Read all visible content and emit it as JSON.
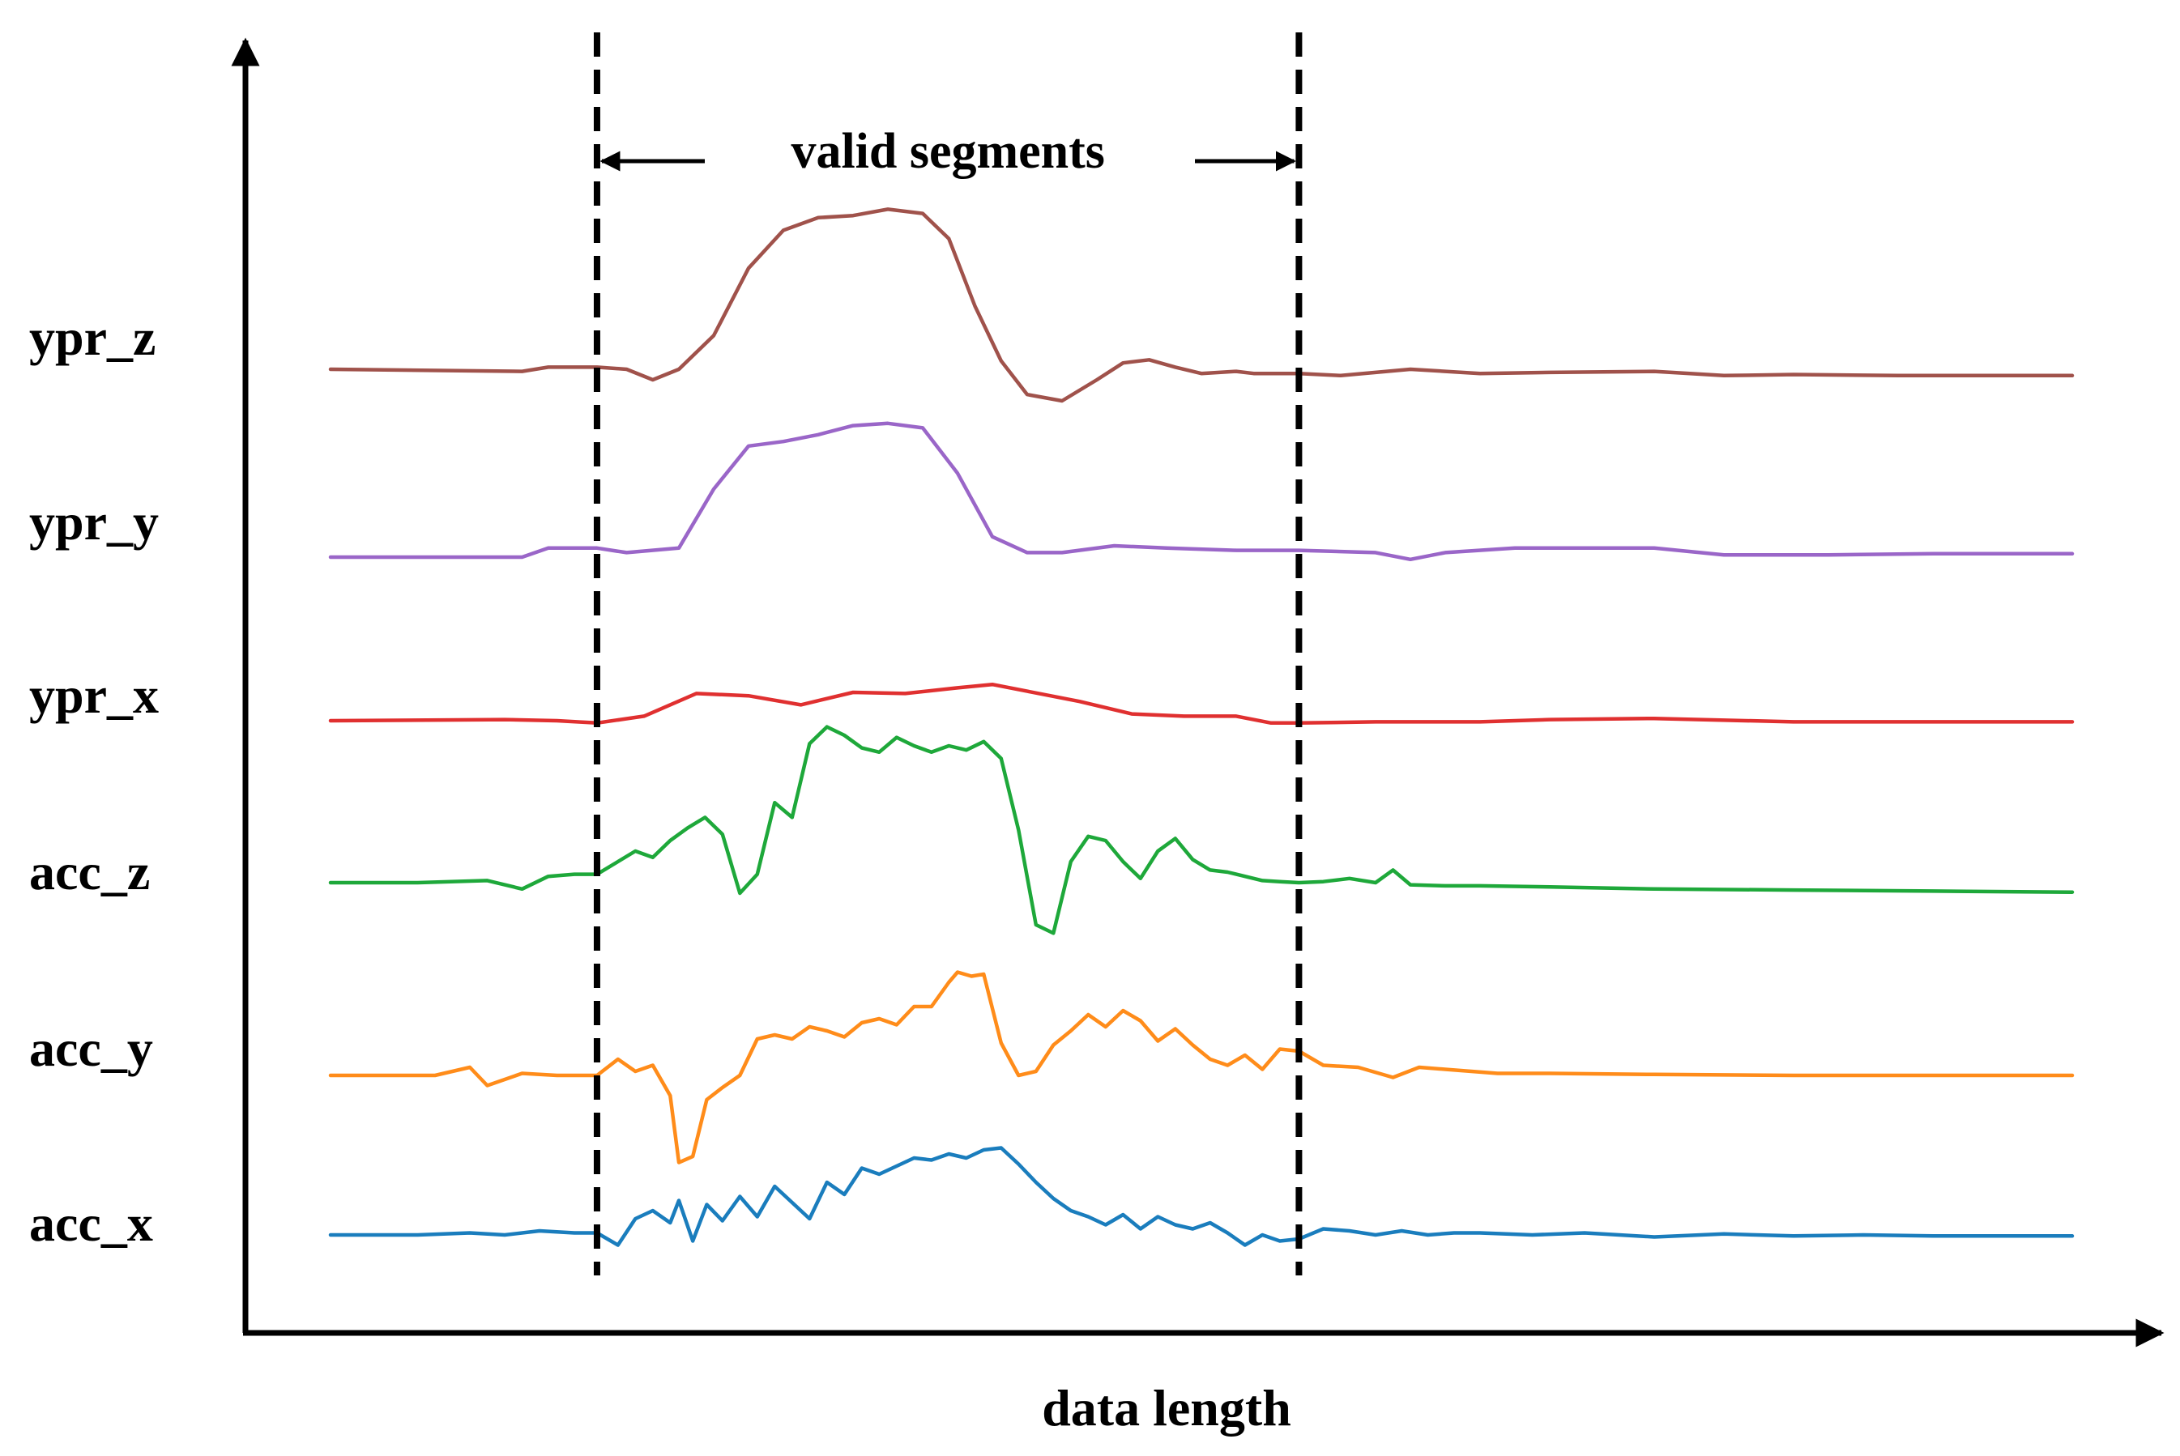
{
  "chart_data": {
    "type": "line",
    "title": "",
    "xlabel": "data length",
    "ylabel": "",
    "grid": false,
    "legend": "none",
    "xlim": [
      0,
      100
    ],
    "valid_segment": {
      "label": "valid segments",
      "start": 15.3,
      "end": 55.6
    },
    "series": [
      {
        "name": "ypr_z",
        "color": "#a0524b",
        "x": [
          0,
          11,
          12.5,
          15.3,
          17,
          18.5,
          20,
          22,
          24,
          26,
          28,
          30,
          32,
          34,
          35.5,
          37,
          38.5,
          40,
          42,
          44,
          45.5,
          47,
          48.5,
          50,
          52,
          53,
          55.6,
          58,
          62,
          66,
          70,
          76,
          80,
          84,
          90,
          100
        ],
        "values": [
          0.0,
          -0.1,
          0.1,
          0.1,
          0.0,
          -0.5,
          0.0,
          1.6,
          4.8,
          6.6,
          7.2,
          7.3,
          7.6,
          7.4,
          6.2,
          3.0,
          0.4,
          -1.2,
          -1.5,
          -0.5,
          0.3,
          0.45,
          0.1,
          -0.2,
          -0.1,
          -0.2,
          -0.2,
          -0.3,
          0.0,
          -0.2,
          -0.15,
          -0.1,
          -0.3,
          -0.25,
          -0.3,
          -0.3
        ]
      },
      {
        "name": "ypr_y",
        "color": "#9a66c8",
        "x": [
          0,
          11,
          12.5,
          15.3,
          17,
          20,
          22,
          24,
          26,
          28,
          30,
          32,
          34,
          36,
          38,
          40,
          42,
          45,
          48,
          52,
          55.6,
          60,
          62,
          64,
          68,
          72,
          76,
          80,
          86,
          92,
          100
        ],
        "values": [
          0.0,
          0.0,
          0.4,
          0.4,
          0.2,
          0.4,
          3.0,
          4.9,
          5.1,
          5.4,
          5.8,
          5.9,
          5.7,
          3.7,
          0.9,
          0.2,
          0.2,
          0.5,
          0.4,
          0.3,
          0.3,
          0.2,
          -0.1,
          0.2,
          0.4,
          0.4,
          0.4,
          0.1,
          0.1,
          0.15,
          0.15
        ]
      },
      {
        "name": "ypr_x",
        "color": "#e03030",
        "x": [
          0,
          10,
          13,
          15.3,
          18,
          21,
          24,
          27,
          30,
          33,
          36,
          38,
          40,
          43,
          46,
          49,
          52,
          54,
          55.6,
          60,
          66,
          70,
          76,
          84,
          92,
          100
        ],
        "values": [
          0.0,
          0.05,
          0.0,
          -0.1,
          0.2,
          1.2,
          1.1,
          0.7,
          1.25,
          1.2,
          1.45,
          1.6,
          1.3,
          0.85,
          0.3,
          0.2,
          0.2,
          -0.1,
          -0.1,
          -0.05,
          -0.05,
          0.05,
          0.1,
          -0.05,
          -0.05,
          -0.05
        ]
      },
      {
        "name": "acc_z",
        "color": "#1ea83a",
        "x": [
          0,
          5,
          9,
          11,
          12.5,
          14,
          15.3,
          16.5,
          17.5,
          18.5,
          19.5,
          20.5,
          21.5,
          22.5,
          23.5,
          24.5,
          25.5,
          26.5,
          27.5,
          28.5,
          29.5,
          30.5,
          31.5,
          32.5,
          33.5,
          34.5,
          35.5,
          36.5,
          37.5,
          38.5,
          39.5,
          40.5,
          41.5,
          42.5,
          43.5,
          44.5,
          45.5,
          46.5,
          47.5,
          48.5,
          49.5,
          50.5,
          51.5,
          52.5,
          53.5,
          54.5,
          55.6,
          57,
          58.5,
          60,
          61,
          62,
          64,
          66,
          70,
          76,
          84,
          92,
          100
        ],
        "values": [
          0.0,
          0.0,
          0.1,
          -0.3,
          0.3,
          0.4,
          0.4,
          1.0,
          1.5,
          1.2,
          2.0,
          2.6,
          3.1,
          2.3,
          -0.5,
          0.4,
          3.8,
          3.1,
          6.6,
          7.4,
          7.0,
          6.4,
          6.2,
          6.9,
          6.5,
          6.2,
          6.5,
          6.3,
          6.7,
          5.9,
          2.5,
          -2.0,
          -2.4,
          1.0,
          2.2,
          2.0,
          1.0,
          0.2,
          1.5,
          2.1,
          1.1,
          0.6,
          0.5,
          0.3,
          0.1,
          0.05,
          0.0,
          0.05,
          0.2,
          0.0,
          0.6,
          -0.1,
          -0.15,
          -0.15,
          -0.2,
          -0.3,
          -0.35,
          -0.4,
          -0.45
        ]
      },
      {
        "name": "acc_y",
        "color": "#ff8c1a",
        "x": [
          0,
          6,
          8,
          9,
          11,
          13,
          15.3,
          16.5,
          17.5,
          18.5,
          19.5,
          20,
          20.8,
          21.6,
          22.5,
          23.5,
          24.5,
          25.5,
          26.5,
          27.5,
          28.5,
          29.5,
          30.5,
          31.5,
          32.5,
          33.5,
          34.5,
          35.5,
          36,
          36.8,
          37.5,
          38.5,
          39.5,
          40.5,
          41.5,
          42.5,
          43.5,
          44.5,
          45.5,
          46.5,
          47.5,
          48.5,
          49.5,
          50.5,
          51.5,
          52.5,
          53.5,
          54.5,
          55.6,
          57,
          59,
          61,
          62.5,
          64,
          67,
          70,
          76,
          84,
          92,
          100
        ],
        "values": [
          0.0,
          0.0,
          0.4,
          -0.5,
          0.1,
          0.0,
          0.0,
          0.8,
          0.2,
          0.5,
          -1.0,
          -4.3,
          -4.0,
          -1.2,
          -0.6,
          0.0,
          1.8,
          2.0,
          1.8,
          2.4,
          2.2,
          1.9,
          2.6,
          2.8,
          2.5,
          3.4,
          3.4,
          4.6,
          5.1,
          4.9,
          5.0,
          1.6,
          0.0,
          0.2,
          1.5,
          2.2,
          3.0,
          2.4,
          3.2,
          2.7,
          1.7,
          2.3,
          1.5,
          0.8,
          0.5,
          1.0,
          0.3,
          1.3,
          1.2,
          0.5,
          0.4,
          -0.1,
          0.4,
          0.3,
          0.1,
          0.1,
          0.05,
          0.0,
          0.0,
          0.0
        ]
      },
      {
        "name": "acc_x",
        "color": "#1a7dbd",
        "x": [
          0,
          5,
          8,
          10,
          12,
          14,
          15.3,
          16.5,
          17.5,
          18.5,
          19.5,
          20,
          20.8,
          21.6,
          22.5,
          23.5,
          24.5,
          25.5,
          26.5,
          27.5,
          28.5,
          29.5,
          30.5,
          31.5,
          32.5,
          33.5,
          34.5,
          35.5,
          36.5,
          37.5,
          38.5,
          39.5,
          40.5,
          41.5,
          42.5,
          43.5,
          44.5,
          45.5,
          46.5,
          47.5,
          48.5,
          49.5,
          50.5,
          51.5,
          52.5,
          53.5,
          54.5,
          55.6,
          57,
          58.5,
          60,
          61.5,
          63,
          64.5,
          66,
          69,
          72,
          76,
          80,
          84,
          88,
          92,
          96,
          100
        ],
        "values": [
          0.0,
          0.0,
          0.1,
          0.0,
          0.2,
          0.1,
          0.1,
          -0.5,
          0.8,
          1.2,
          0.6,
          1.7,
          -0.3,
          1.5,
          0.7,
          1.9,
          0.9,
          2.4,
          1.6,
          0.8,
          2.6,
          2.0,
          3.3,
          3.0,
          3.4,
          3.8,
          3.7,
          4.0,
          3.8,
          4.2,
          4.3,
          3.5,
          2.6,
          1.8,
          1.2,
          0.9,
          0.5,
          1.0,
          0.3,
          0.9,
          0.5,
          0.3,
          0.6,
          0.1,
          -0.5,
          0.0,
          -0.3,
          -0.2,
          0.3,
          0.2,
          0.0,
          0.2,
          0.0,
          0.1,
          0.1,
          0.0,
          0.1,
          -0.1,
          0.05,
          -0.05,
          0.0,
          -0.05,
          -0.05,
          -0.05
        ]
      }
    ]
  }
}
